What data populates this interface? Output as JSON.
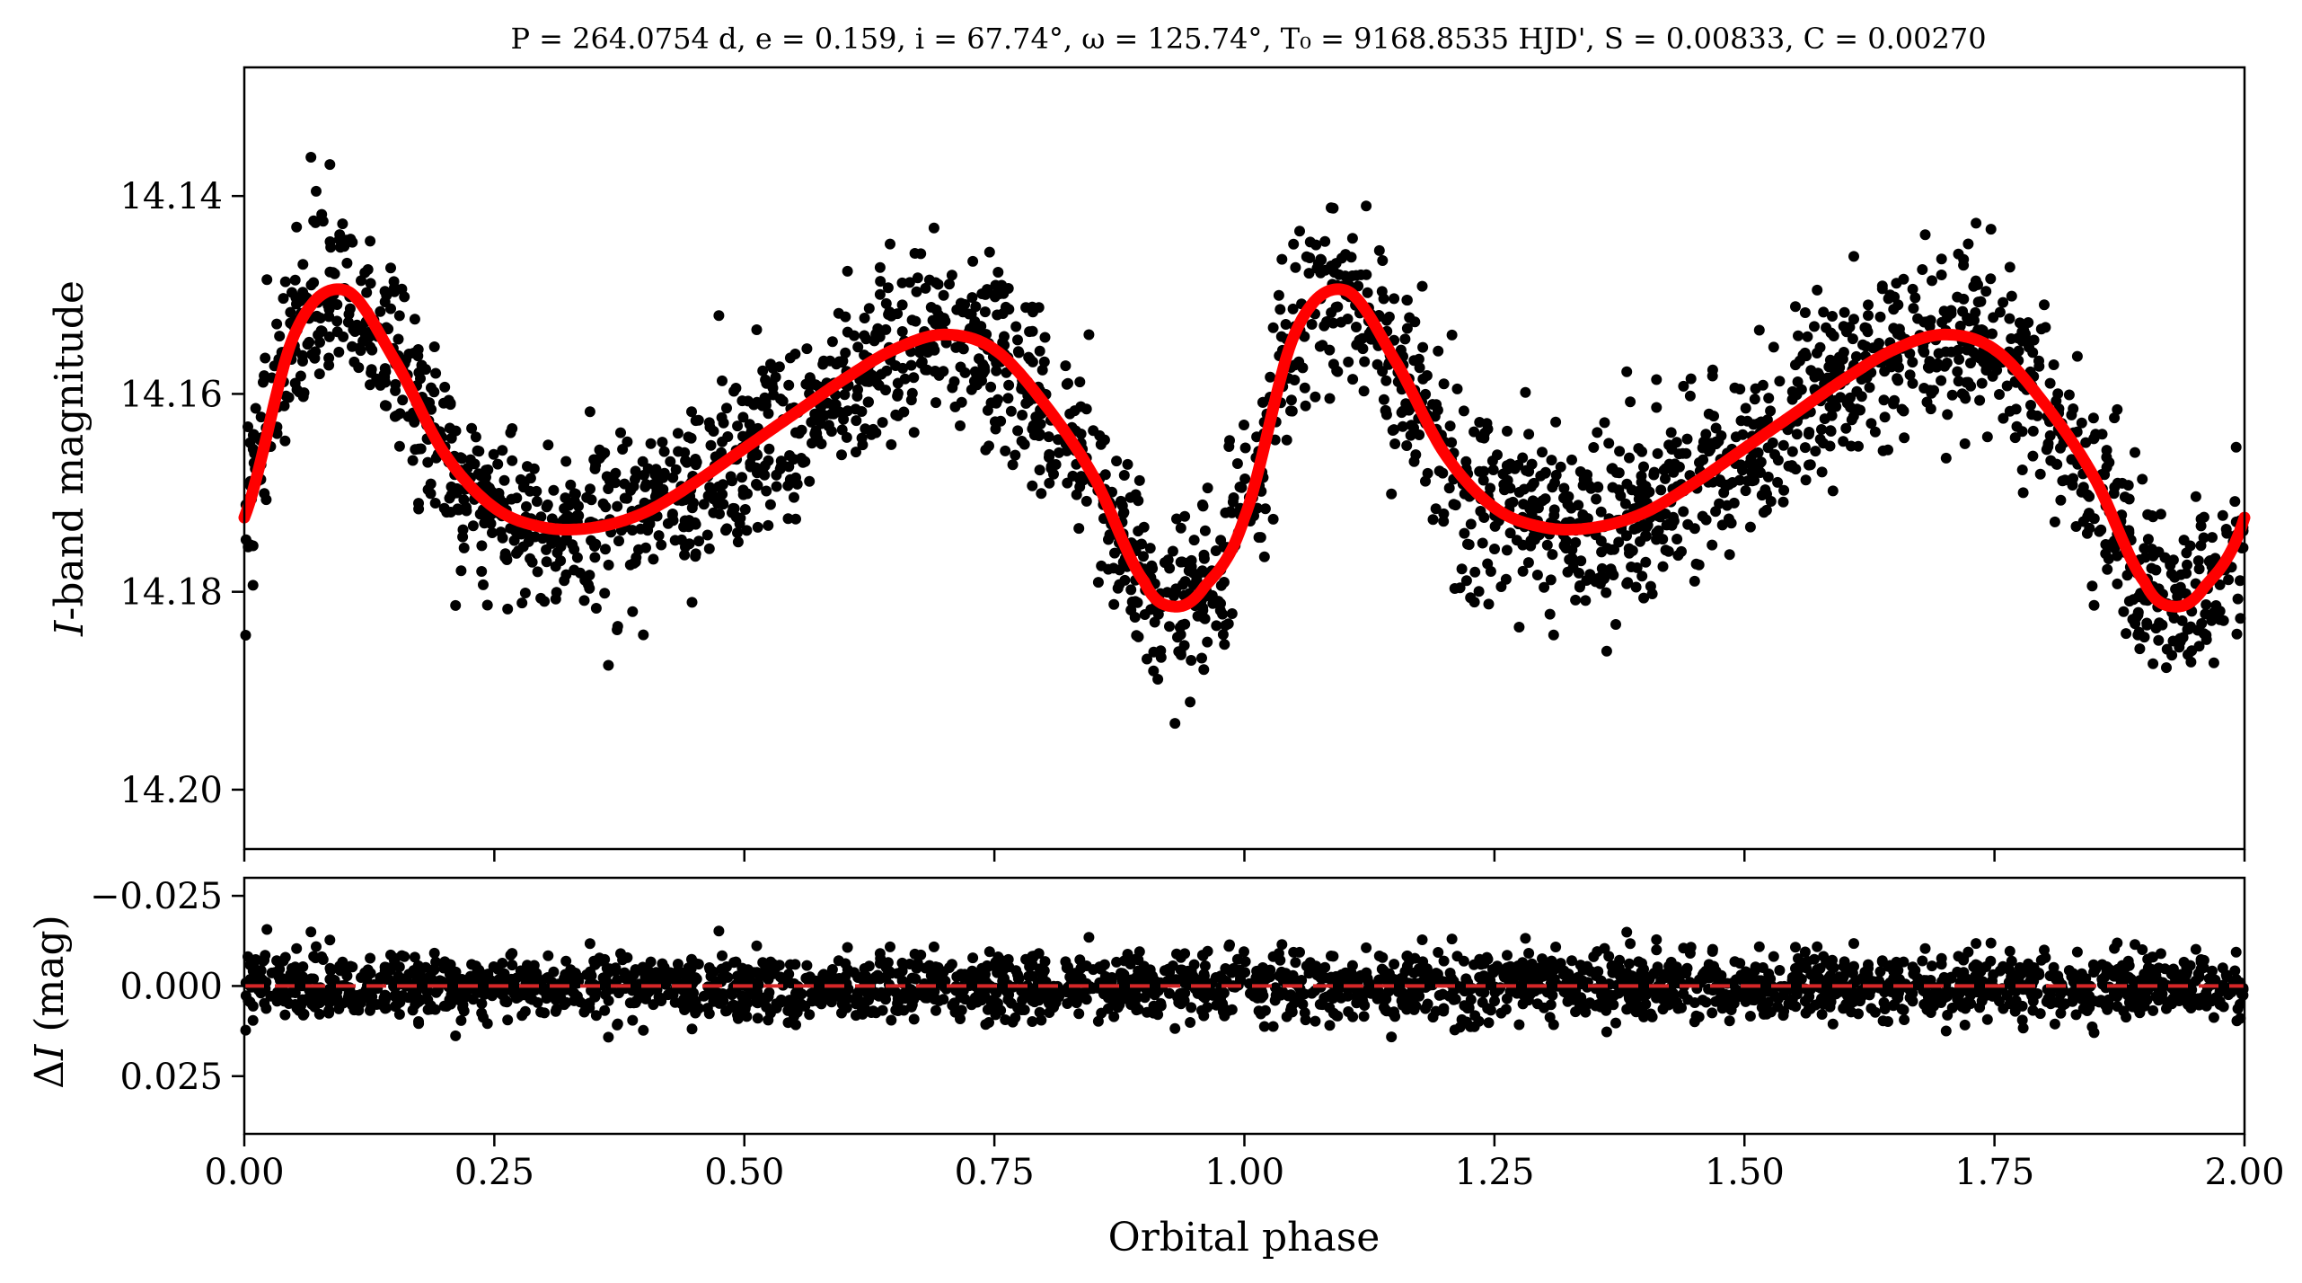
{
  "title": "P = 264.0754 d, e = 0.159, i = 67.74°, ω = 125.74°, T₀ = 9168.8535 HJD', S = 0.00833, C = 0.00270",
  "chart_data": [
    {
      "type": "scatter",
      "panel": "top",
      "ylabel": "I-band magnitude",
      "y_inverted": true,
      "xlim": [
        0.0,
        2.0
      ],
      "ylim": [
        14.127,
        14.206
      ],
      "yticks": [
        14.14,
        14.16,
        14.18,
        14.2
      ],
      "ytick_labels": [
        "14.14",
        "14.16",
        "14.18",
        "14.20"
      ],
      "grid": false,
      "series": [
        {
          "kind": "points",
          "color": "#000000",
          "description_curve_phase": [
            0.0,
            0.05,
            0.1,
            0.15,
            0.2,
            0.25,
            0.3,
            0.35,
            0.4,
            0.45,
            0.5,
            0.55,
            0.6,
            0.65,
            0.7,
            0.75,
            0.8,
            0.85,
            0.9,
            0.93,
            0.96,
            1.0
          ],
          "description_curve_mag": [
            14.1725,
            14.154,
            14.1495,
            14.1565,
            14.166,
            14.1715,
            14.1735,
            14.1735,
            14.172,
            14.169,
            14.1655,
            14.162,
            14.1585,
            14.1555,
            14.154,
            14.1555,
            14.161,
            14.1685,
            14.179,
            14.1815,
            14.1795,
            14.1725
          ],
          "scatter_sigma": 0.005
        },
        {
          "kind": "model-curve",
          "color": "#ff0000",
          "x": [
            0.0,
            0.05,
            0.1,
            0.15,
            0.2,
            0.25,
            0.3,
            0.35,
            0.4,
            0.45,
            0.5,
            0.55,
            0.6,
            0.65,
            0.7,
            0.75,
            0.8,
            0.85,
            0.9,
            0.93,
            0.96,
            1.0
          ],
          "y": [
            14.1725,
            14.154,
            14.1495,
            14.1565,
            14.166,
            14.1715,
            14.1735,
            14.1735,
            14.172,
            14.169,
            14.1655,
            14.162,
            14.1585,
            14.1555,
            14.154,
            14.1555,
            14.161,
            14.1685,
            14.179,
            14.1815,
            14.1795,
            14.1725
          ],
          "repeats_every": 1.0
        }
      ]
    },
    {
      "type": "scatter",
      "panel": "bottom",
      "xlabel": "Orbital phase",
      "ylabel": "ΔI (mag)",
      "y_inverted": true,
      "xlim": [
        0.0,
        2.0
      ],
      "ylim": [
        -0.03,
        0.041
      ],
      "xticks": [
        0.0,
        0.25,
        0.5,
        0.75,
        1.0,
        1.25,
        1.5,
        1.75,
        2.0
      ],
      "xtick_labels": [
        "0.00",
        "0.25",
        "0.50",
        "0.75",
        "1.00",
        "1.25",
        "1.50",
        "1.75",
        "2.00"
      ],
      "yticks": [
        -0.025,
        0.0,
        0.025
      ],
      "ytick_labels": [
        "−0.025",
        "0.000",
        "0.025"
      ],
      "grid": false,
      "series": [
        {
          "kind": "residual-points",
          "color": "#000000",
          "mean": 0.0,
          "scatter_sigma": 0.005
        },
        {
          "kind": "zero-line",
          "color": "#d62728",
          "style": "dashed",
          "y": 0.0
        }
      ]
    }
  ]
}
